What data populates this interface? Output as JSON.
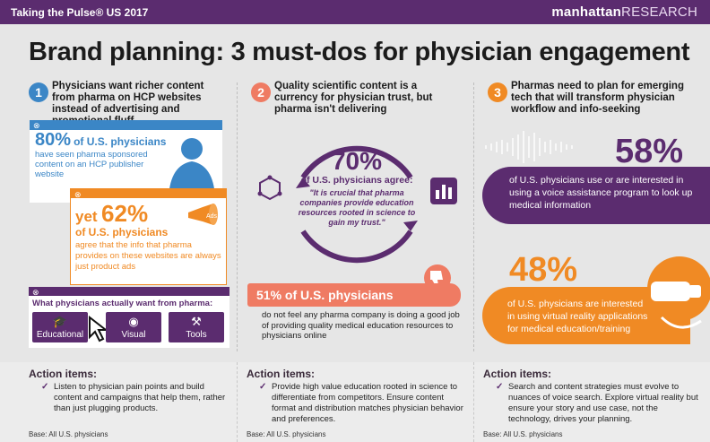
{
  "header": {
    "left": "Taking the Pulse® US 2017",
    "brand_a": "manhattan",
    "brand_b": "RESEARCH"
  },
  "title": "Brand planning: 3 must-dos for physician engagement",
  "col1": {
    "num": "1",
    "heading": "Physicians want richer content from pharma on HCP websites instead of advertising and promotional fluff",
    "stat1_pct": "80%",
    "stat1_lead": "of U.S. physicians",
    "stat1_text": "have seen pharma sponsored content on an HCP publisher website",
    "stat2_pre": "yet",
    "stat2_pct": "62%",
    "stat2_lead": "of U.S. physicians",
    "stat2_text": "agree that the info that pharma provides on these websites are always just product ads",
    "ads_label": "Ads",
    "want_title": "What physicians actually want from pharma:",
    "tiles": [
      "Educational",
      "Visual",
      "Tools"
    ]
  },
  "col2": {
    "num": "2",
    "heading": "Quality scientific content is a currency for physician trust, but pharma isn't delivering",
    "stat_pct": "70%",
    "stat_lead": "of U.S. physicians agree:",
    "quote": "\"It is crucial that pharma companies provide education resources rooted in science to gain my trust.\"",
    "stat2_head": "51% of U.S. physicians",
    "stat2_text": "do not feel any pharma company is doing a good job of providing quality medical education resources to physicians online"
  },
  "col3": {
    "num": "3",
    "heading": "Pharmas need to plan for emerging tech that will transform physician workflow and info-seeking",
    "stat1_pct": "58%",
    "stat1_text": "of U.S. physicians use or are interested in using a voice assistance program to look up medical information",
    "stat2_pct": "48%",
    "stat2_text": "of U.S. physicians are interested in using virtual reality applications for medical education/training"
  },
  "actions": [
    {
      "title": "Action items:",
      "text": "Listen to physician pain points and build content and campaigns that help them, rather than just plugging products.",
      "base": "Base: All U.S. physicians"
    },
    {
      "title": "Action items:",
      "text": "Provide high value education rooted in science to differentiate from competitors. Ensure content format and distribution matches physician behavior and preferences.",
      "base": "Base: All U.S. physicians"
    },
    {
      "title": "Action items:",
      "text": "Search and content strategies must evolve to nuances of voice search. Explore virtual reality but ensure your story and use case, not the technology, drives your planning.",
      "base": "Base: All U.S. physicians"
    }
  ],
  "colors": {
    "purple": "#5b2c6f",
    "blue": "#3b86c6",
    "orange": "#f08a24",
    "salmon": "#ef7b63"
  },
  "icons": [
    "close-icon",
    "doctor-silhouette-icon",
    "megaphone-icon",
    "graduation-cap-icon",
    "cursor-arrow-icon",
    "eye-icon",
    "toolbox-icon",
    "molecule-icon",
    "lab-chart-icon",
    "thumbs-down-icon",
    "sound-wave-icon",
    "vr-headset-icon",
    "checkmark-icon"
  ]
}
